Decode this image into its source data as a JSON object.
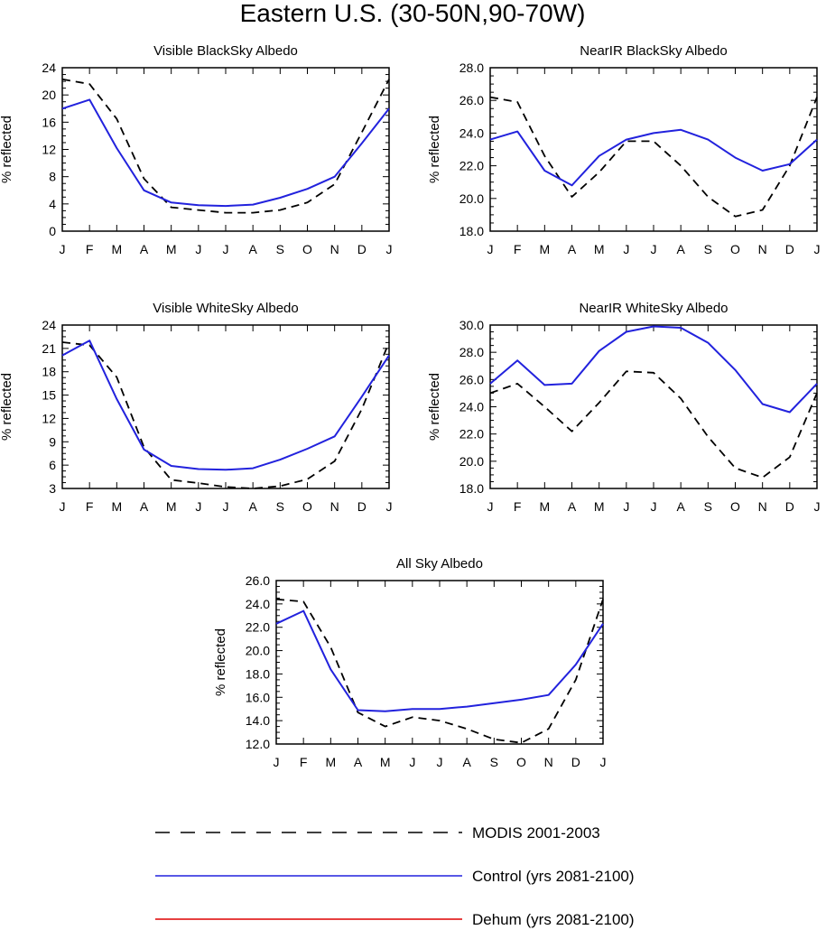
{
  "figure_title": "Eastern U.S. (30-50N,90-70W)",
  "months": [
    "J",
    "F",
    "M",
    "A",
    "M",
    "J",
    "J",
    "A",
    "S",
    "O",
    "N",
    "D",
    "J"
  ],
  "colors": {
    "modis": "#000000",
    "control": "#2222dd",
    "dehum": "#dd0000"
  },
  "legend": {
    "modis_label": "MODIS 2001-2003",
    "control_label": "Control (yrs 2081-2100)",
    "dehum_label": "Dehum (yrs 2081-2100)"
  },
  "chart_data": [
    {
      "type": "line",
      "title": "Visible BlackSky Albedo",
      "ylabel": "% reflected",
      "ylim": [
        0,
        24
      ],
      "yticks": [
        0,
        4,
        8,
        12,
        16,
        20,
        24
      ],
      "ytick_labels": [
        "0",
        "4",
        "8",
        "12",
        "16",
        "20",
        "24"
      ],
      "categories": [
        "J",
        "F",
        "M",
        "A",
        "M",
        "J",
        "J",
        "A",
        "S",
        "O",
        "N",
        "D",
        "J"
      ],
      "series": [
        {
          "name": "MODIS 2001-2003",
          "style": "dashed",
          "color": "#000000",
          "values": [
            22.3,
            21.6,
            16.5,
            7.7,
            3.5,
            3.1,
            2.7,
            2.7,
            3.1,
            4.2,
            6.9,
            14.5,
            22.3
          ]
        },
        {
          "name": "Control (yrs 2081-2100)",
          "style": "solid",
          "color": "#2222dd",
          "values": [
            18.0,
            19.3,
            12.2,
            6.0,
            4.2,
            3.8,
            3.7,
            3.9,
            4.9,
            6.2,
            8.0,
            12.9,
            18.0
          ]
        }
      ]
    },
    {
      "type": "line",
      "title": "NearIR BlackSky Albedo",
      "ylabel": "% reflected",
      "ylim": [
        18,
        28
      ],
      "yticks": [
        18,
        20,
        22,
        24,
        26,
        28
      ],
      "ytick_labels": [
        "18.0",
        "20.0",
        "22.0",
        "24.0",
        "26.0",
        "28.0"
      ],
      "categories": [
        "J",
        "F",
        "M",
        "A",
        "M",
        "J",
        "J",
        "A",
        "S",
        "O",
        "N",
        "D",
        "J"
      ],
      "series": [
        {
          "name": "MODIS 2001-2003",
          "style": "dashed",
          "color": "#000000",
          "values": [
            26.2,
            25.9,
            22.6,
            20.1,
            21.6,
            23.5,
            23.5,
            22.0,
            20.1,
            18.9,
            19.3,
            22.0,
            26.2
          ]
        },
        {
          "name": "Control (yrs 2081-2100)",
          "style": "solid",
          "color": "#2222dd",
          "values": [
            23.6,
            24.1,
            21.7,
            20.8,
            22.6,
            23.6,
            24.0,
            24.2,
            23.6,
            22.5,
            21.7,
            22.1,
            23.6
          ]
        }
      ]
    },
    {
      "type": "line",
      "title": "Visible WhiteSky Albedo",
      "ylabel": "% reflected",
      "ylim": [
        3,
        24
      ],
      "yticks": [
        3,
        6,
        9,
        12,
        15,
        18,
        21,
        24
      ],
      "ytick_labels": [
        "3",
        "6",
        "9",
        "12",
        "15",
        "18",
        "21",
        "24"
      ],
      "categories": [
        "J",
        "F",
        "M",
        "A",
        "M",
        "J",
        "J",
        "A",
        "S",
        "O",
        "N",
        "D",
        "J"
      ],
      "series": [
        {
          "name": "MODIS 2001-2003",
          "style": "dashed",
          "color": "#000000",
          "values": [
            21.8,
            21.4,
            17.3,
            8.3,
            4.1,
            3.7,
            3.2,
            3.0,
            3.3,
            4.2,
            6.5,
            13.2,
            21.8
          ]
        },
        {
          "name": "Control (yrs 2081-2100)",
          "style": "solid",
          "color": "#2222dd",
          "values": [
            20.1,
            22.0,
            14.5,
            8.0,
            5.9,
            5.5,
            5.4,
            5.6,
            6.7,
            8.1,
            9.7,
            14.8,
            20.1
          ]
        }
      ]
    },
    {
      "type": "line",
      "title": "NearIR WhiteSky Albedo",
      "ylabel": "% reflected",
      "ylim": [
        18,
        30
      ],
      "yticks": [
        18,
        20,
        22,
        24,
        26,
        28,
        30
      ],
      "ytick_labels": [
        "18.0",
        "20.0",
        "22.0",
        "24.0",
        "26.0",
        "28.0",
        "30.0"
      ],
      "categories": [
        "J",
        "F",
        "M",
        "A",
        "M",
        "J",
        "J",
        "A",
        "S",
        "O",
        "N",
        "D",
        "J"
      ],
      "series": [
        {
          "name": "MODIS 2001-2003",
          "style": "dashed",
          "color": "#000000",
          "values": [
            25.0,
            25.7,
            24.0,
            22.2,
            24.3,
            26.6,
            26.5,
            24.6,
            21.8,
            19.5,
            18.8,
            20.3,
            25.0
          ]
        },
        {
          "name": "Control (yrs 2081-2100)",
          "style": "solid",
          "color": "#2222dd",
          "values": [
            25.7,
            27.4,
            25.6,
            25.7,
            28.1,
            29.5,
            29.9,
            29.8,
            28.7,
            26.7,
            24.2,
            23.6,
            25.7
          ]
        }
      ]
    },
    {
      "type": "line",
      "title": "All Sky Albedo",
      "ylabel": "% reflected",
      "ylim": [
        12,
        26
      ],
      "yticks": [
        12,
        14,
        16,
        18,
        20,
        22,
        24,
        26
      ],
      "ytick_labels": [
        "12.0",
        "14.0",
        "16.0",
        "18.0",
        "20.0",
        "22.0",
        "24.0",
        "26.0"
      ],
      "categories": [
        "J",
        "F",
        "M",
        "A",
        "M",
        "J",
        "J",
        "A",
        "S",
        "O",
        "N",
        "D",
        "J"
      ],
      "series": [
        {
          "name": "MODIS 2001-2003",
          "style": "dashed",
          "color": "#000000",
          "values": [
            24.4,
            24.2,
            20.3,
            14.7,
            13.5,
            14.3,
            14.0,
            13.3,
            12.4,
            12.1,
            13.3,
            17.5,
            24.4
          ]
        },
        {
          "name": "Control (yrs 2081-2100)",
          "style": "solid",
          "color": "#2222dd",
          "values": [
            22.3,
            23.4,
            18.4,
            14.9,
            14.8,
            15.0,
            15.0,
            15.2,
            15.5,
            15.8,
            16.2,
            18.8,
            22.3
          ]
        }
      ]
    }
  ]
}
